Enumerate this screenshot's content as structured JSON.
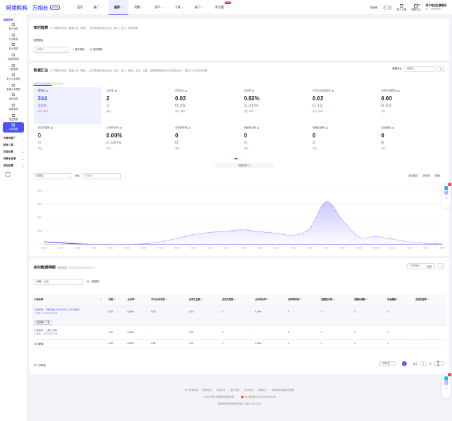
{
  "brand": {
    "name": "阿里妈妈 · 万相台",
    "badge": "无界版"
  },
  "nav": [
    {
      "label": "首页"
    },
    {
      "label": "推广",
      "arrow": "⌄"
    },
    {
      "label": "报表",
      "arrow": "⌄"
    },
    {
      "label": "洞察",
      "arrow": "⌄"
    },
    {
      "label": "资产",
      "arrow": "⌄"
    },
    {
      "label": "工具",
      "arrow": "⌄"
    },
    {
      "label": "账户",
      "arrow": "⌄"
    },
    {
      "label": "奔小蜜",
      "badge": "NEW"
    }
  ],
  "topright": {
    "mode_label": "极速版",
    "toggle_text": "开",
    "newbie_label": "新人手册",
    "msg_label": "消息中心",
    "user_name": "阿卡哈佳品旗舰店",
    "user_id": "ID：93058960"
  },
  "sidebar": {
    "group1": "基础报表",
    "items": [
      {
        "label": "账户报表"
      },
      {
        "label": "计划报表"
      },
      {
        "label": "单元报表"
      },
      {
        "label": "关键词报表"
      },
      {
        "label": "人群报表"
      },
      {
        "label": "宝贝主体报表"
      },
      {
        "label": "营销主体报表"
      },
      {
        "label": "创意报表"
      },
      {
        "label": "地域报表"
      },
      {
        "label": "权益报表"
      },
      {
        "label": "实时报表"
      }
    ],
    "groups": [
      {
        "label": "关键词推广",
        "arrow": "⌄"
      },
      {
        "label": "精准人群...",
        "arrow": "⌄"
      },
      {
        "label": "货品运营",
        "arrow": "⌄"
      },
      {
        "label": "消费者运营",
        "arrow": "⌄"
      },
      {
        "label": "活动运营",
        "arrow": "⌄"
      }
    ]
  },
  "realtime": {
    "title": "实时报表",
    "desc": "以下数据不包括「直播」和「视频」；实时数据有延迟(计划、单元、宝贝、关键词等)",
    "template_label": "报表模版",
    "template_value": "请选择",
    "filter_label": "更多筛选",
    "save_label": "保存模版"
  },
  "summary": {
    "title": "数据汇总",
    "desc": "以下数据不包括「直播」和「视频」；实时数据有延迟(计划、单元、宝贝、精选)；成交、收藏、加购数据等含在点击后的转化中，建议2~3小时后再查看",
    "compare_label": "周期对比",
    "compare_value": "日环比",
    "date_today": "2024-03-12(今日)",
    "date_prev": "2024-03-11",
    "metrics": [
      {
        "name": "展现量",
        "v1": "244",
        "v2": "165",
        "cmp": "对比",
        "chg": "+47%",
        "dir": "up"
      },
      {
        "name": "点击量",
        "v1": "2",
        "v2": "2",
        "cmp": "对比",
        "chg": "-",
        "dir": "none"
      },
      {
        "name": "花费(元)",
        "v1": "0.03",
        "v2": "0.25",
        "cmp": "对比",
        "chg": "-88%",
        "dir": "down"
      },
      {
        "name": "点击率",
        "v1": "0.82%",
        "v2": "1.21%",
        "cmp": "对比",
        "chg": "-32%",
        "dir": "down"
      },
      {
        "name": "平均点击花费(元)",
        "v1": "0.02",
        "v2": "0.13",
        "cmp": "对比",
        "chg": "-84%",
        "dir": "down"
      },
      {
        "name": "总成交金额(元)",
        "v1": "0.00",
        "v2": "0.00",
        "cmp": "对比",
        "chg": "-",
        "dir": "none"
      },
      {
        "name": "总成交笔数",
        "v1": "0",
        "v2": "0",
        "cmp": "对比",
        "chg": "-",
        "dir": "none"
      },
      {
        "name": "点击转化率",
        "v1": "0.00%",
        "v2": "0.00%",
        "cmp": "对比",
        "chg": "-",
        "dir": "none"
      },
      {
        "name": "总购物车数",
        "v1": "0",
        "v2": "0",
        "cmp": "对比",
        "chg": "-",
        "dir": "none"
      },
      {
        "name": "收藏宝贝数",
        "v1": "0",
        "v2": "0",
        "cmp": "对比",
        "chg": "-",
        "dir": "none"
      },
      {
        "name": "收藏店铺数",
        "v1": "0",
        "v2": "0",
        "cmp": "对比",
        "chg": "-",
        "dir": "none"
      },
      {
        "name": "总收藏数",
        "v1": "0",
        "v2": "0",
        "cmp": "对比",
        "chg": "-",
        "dir": "none"
      }
    ],
    "trend_toggle": "收起详情",
    "metric_select": "展现量",
    "compare_select_label": "对比",
    "compare_select": "请选择",
    "display_mode_label": "显示模式",
    "mode_trend": "趋势图",
    "mode_table": "表格"
  },
  "chart_data": {
    "type": "area",
    "x": [
      "00:00",
      "01:00",
      "02:00",
      "03:00",
      "04:00",
      "05:00",
      "06:00",
      "07:00",
      "08:00",
      "09:00",
      "10:00",
      "11:00",
      "12:00",
      "13:00",
      "14:00",
      "15:00",
      "16:00",
      "17:00",
      "18:00",
      "19:00",
      "20:00",
      "21:00",
      "22:00",
      "23:00",
      "24:00"
    ],
    "yticks": [
      "0",
      "1000",
      "2000",
      "3000",
      "4000"
    ],
    "ylim": [
      0,
      4000
    ],
    "series": [
      {
        "values": [
          40,
          20,
          15,
          15,
          15,
          15,
          60,
          200,
          450,
          750,
          900,
          1000,
          1100,
          950,
          850,
          700,
          1200,
          3200,
          1800,
          550,
          600,
          400,
          200,
          100,
          50
        ],
        "color": "#6c63ff",
        "dashed": true
      },
      {
        "values": [
          200,
          120,
          60,
          20,
          10,
          10,
          10,
          10,
          10,
          10,
          10,
          10,
          10,
          10,
          10,
          10,
          10,
          10,
          10,
          10,
          10,
          10,
          10,
          10,
          10
        ],
        "color": "#3b4cf5",
        "dashed": false
      }
    ]
  },
  "detail": {
    "title": "实时数据明细",
    "date_range": "数据范围：2024-03-12至2024-03-12",
    "zoom_label": "字号放大",
    "dim_label": "维度：计划",
    "download_label": "一键报制",
    "columns": [
      "计划名称",
      "",
      "花费",
      "点击率",
      "平均点击花费",
      "总成交金额",
      "总成交笔数",
      "点击转化率",
      "总购物车数",
      "收藏宝贝数",
      "收藏店铺数",
      "总收藏数",
      "投资回报率"
    ],
    "rows": [
      {
        "name": "计划名称：货品加速_20240306_192942测试",
        "id": "计划ID：84087134848",
        "cols": [
          "0.03",
          "0.82%",
          "0.02",
          "0.00",
          "0",
          "0.00%",
          "0",
          "0",
          "0",
          "0",
          "-"
        ],
        "tag": "管理推广计划"
      },
      {
        "name": "计划名称：上新七日第",
        "id": "计划ID：83084850244",
        "cols": [
          "0.00",
          "0.00%",
          "-",
          "0.00",
          "0",
          "-",
          "0",
          "0",
          "0",
          "0",
          "-"
        ],
        "tag": ""
      }
    ],
    "total": {
      "label": "合计数据",
      "cols": [
        "0.03",
        "0.82%",
        "0.02",
        "0.00",
        "0",
        "0.00%",
        "0",
        "0",
        "0",
        "0",
        "-"
      ]
    },
    "count_label": "共 2 项数据",
    "page_size": "20条/页",
    "page": "1",
    "goto_label": "前往",
    "goto_value": "1",
    "page_unit": "页",
    "jump_label": "跳转"
  },
  "footer": {
    "links": [
      "关于阿里妈妈",
      "服务协议",
      "开放平台",
      "廉正举报",
      "意见反馈",
      "帮助中心",
      "法律声明及隐私权政策"
    ],
    "copyright": "© 2007-现在 阿里妈妈版权所有",
    "icp": "浙公网安备 33010002000092号",
    "license": "增值电信业务经营许可证：浙B2-20070195"
  },
  "service": {
    "label": "在线客服",
    "badge": "1"
  }
}
